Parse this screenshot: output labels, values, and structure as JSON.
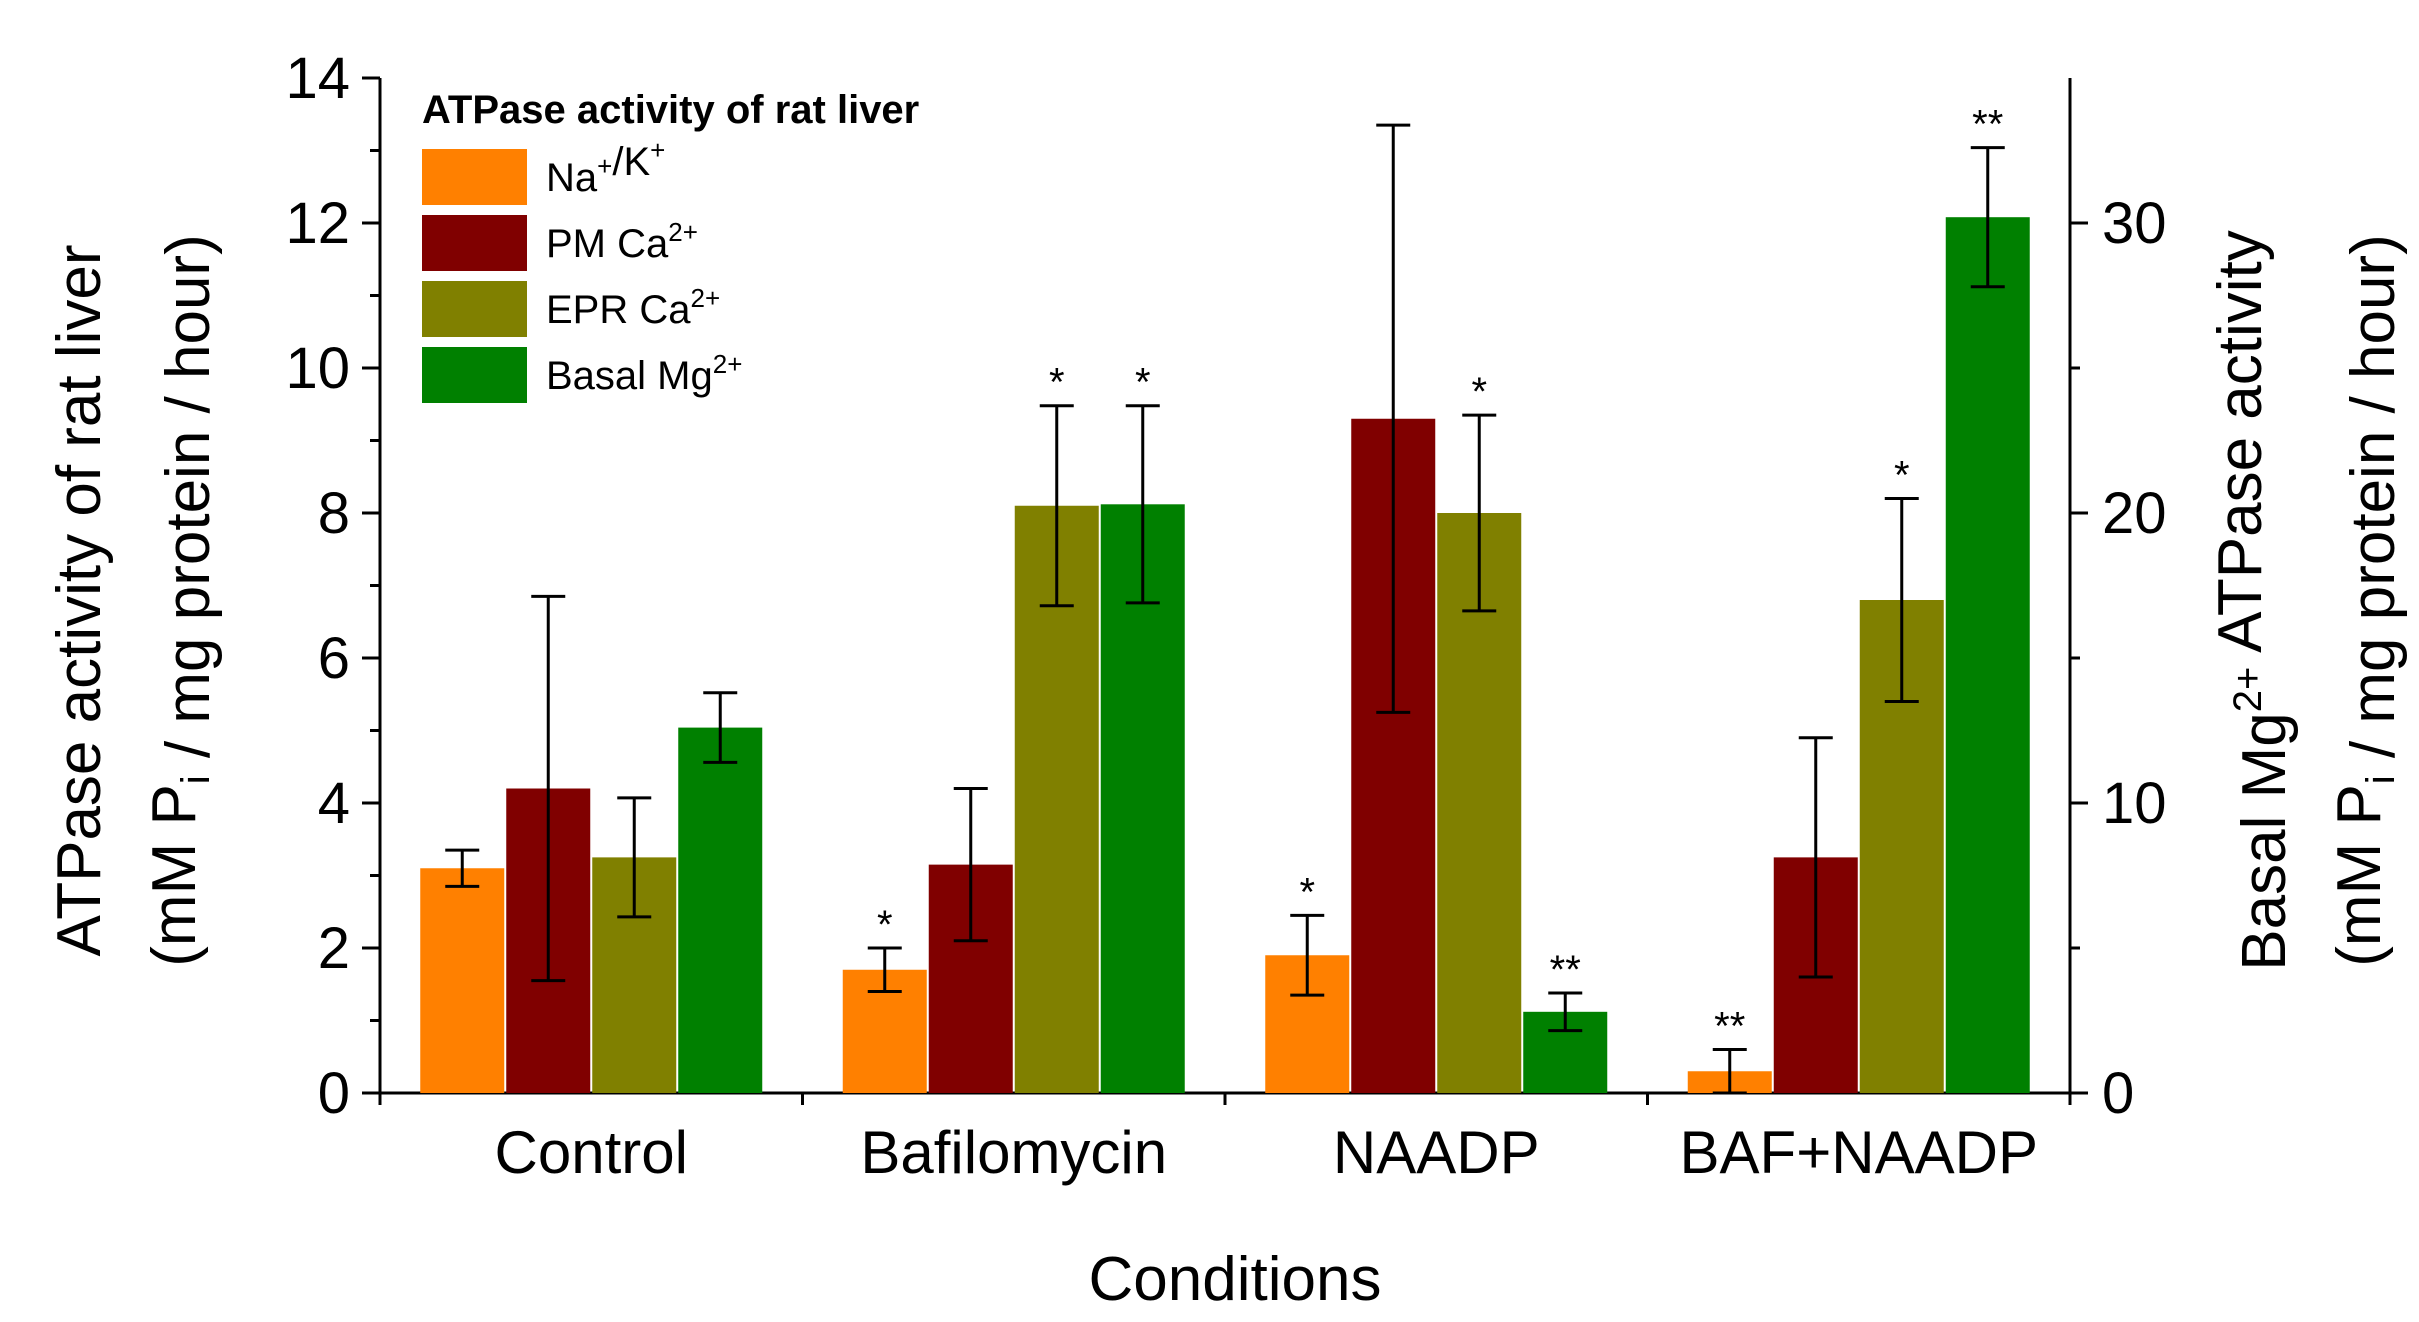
{
  "chart_data": {
    "type": "bar",
    "xlabel": "Conditions",
    "categories": [
      "Control",
      "Bafilomycin",
      "NAADP",
      "BAF+NAADP"
    ],
    "ylabel_left_line1": "ATPase activity of rat liver",
    "ylabel_left_line2_pre": "(mM P",
    "ylabel_left_line2_sub": "i",
    "ylabel_left_line2_post": " / mg protein / hour)",
    "ylabel_right_line1_pre": "Basal Mg",
    "ylabel_right_line1_sup": "2+",
    "ylabel_right_line1_post": " ATPase activity",
    "ylabel_right_line2_pre": "(mM P",
    "ylabel_right_line2_sub": "i",
    "ylabel_right_line2_post": " / mg protein / hour)",
    "ylim_left": [
      0,
      14
    ],
    "yticks_left": [
      0,
      2,
      4,
      6,
      8,
      10,
      12,
      14
    ],
    "ylim_right": [
      0,
      35
    ],
    "yticks_right": [
      0,
      10,
      20,
      30
    ],
    "legend_title": "ATPase activity of rat liver",
    "series": [
      {
        "name": "Na+/K+",
        "label_parts": [
          [
            "Na",
            ""
          ],
          [
            "+",
            "sup"
          ],
          [
            "/K",
            ""
          ],
          [
            "+",
            "sup"
          ]
        ],
        "color": "#ff8000",
        "axis": "left",
        "values": [
          3.1,
          1.7,
          1.9,
          0.3
        ],
        "errors": [
          0.25,
          0.3,
          0.55,
          0.3
        ],
        "sig": [
          "",
          "*",
          "*",
          "**"
        ]
      },
      {
        "name": "PM Ca2+",
        "label_parts": [
          [
            "PM Ca",
            ""
          ],
          [
            "2+",
            "sup"
          ]
        ],
        "color": "#800000",
        "axis": "left",
        "values": [
          4.2,
          3.15,
          9.3,
          3.25
        ],
        "errors": [
          2.65,
          1.05,
          4.05,
          1.65
        ],
        "sig": [
          "",
          "",
          "",
          ""
        ]
      },
      {
        "name": "EPR Ca2+",
        "label_parts": [
          [
            "EPR Ca",
            ""
          ],
          [
            "2+",
            "sup"
          ]
        ],
        "color": "#808000",
        "axis": "left",
        "values": [
          3.25,
          8.1,
          8.0,
          6.8
        ],
        "errors": [
          0.82,
          1.38,
          1.35,
          1.4
        ],
        "sig": [
          "",
          "*",
          "*",
          "*"
        ]
      },
      {
        "name": "Basal Mg2+",
        "label_parts": [
          [
            "Basal Mg",
            ""
          ],
          [
            "2+",
            "sup"
          ]
        ],
        "color": "#008000",
        "axis": "right",
        "values": [
          12.6,
          20.3,
          2.8,
          30.2
        ],
        "errors": [
          1.2,
          3.4,
          0.65,
          2.4
        ],
        "sig": [
          "",
          "*",
          "**",
          "**"
        ]
      }
    ]
  }
}
